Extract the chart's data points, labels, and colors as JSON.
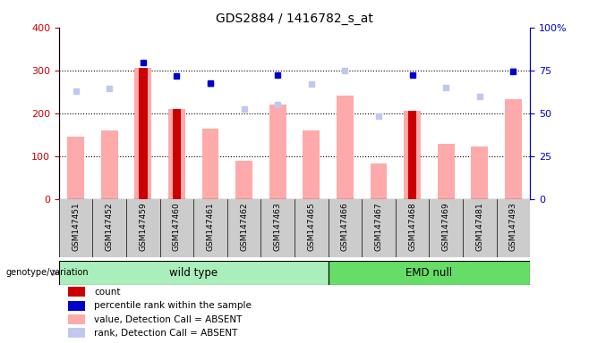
{
  "title": "GDS2884 / 1416782_s_at",
  "samples": [
    "GSM147451",
    "GSM147452",
    "GSM147459",
    "GSM147460",
    "GSM147461",
    "GSM147462",
    "GSM147463",
    "GSM147465",
    "GSM147466",
    "GSM147467",
    "GSM147468",
    "GSM147469",
    "GSM147481",
    "GSM147493"
  ],
  "wt_count": 8,
  "count": [
    null,
    null,
    305,
    210,
    null,
    null,
    null,
    null,
    null,
    null,
    205,
    null,
    null,
    null
  ],
  "value_absent": [
    145,
    160,
    305,
    210,
    165,
    90,
    220,
    160,
    242,
    83,
    205,
    128,
    122,
    232
  ],
  "rank_absent": [
    252,
    258,
    null,
    null,
    268,
    210,
    220,
    268,
    300,
    193,
    null,
    260,
    240,
    300
  ],
  "percentile_absent": [
    null,
    null,
    318,
    286,
    270,
    null,
    288,
    null,
    null,
    null,
    290,
    null,
    null,
    298
  ],
  "ylim_left": [
    0,
    400
  ],
  "ylim_right": [
    0,
    100
  ],
  "yticks_left": [
    0,
    100,
    200,
    300,
    400
  ],
  "yticks_right": [
    0,
    25,
    50,
    75,
    100
  ],
  "group_label": "genotype/variation",
  "group1_label": "wild type",
  "group2_label": "EMD null",
  "group1_color": "#aaeebb",
  "group2_color": "#66dd66",
  "sample_bg": "#cccccc",
  "plot_bg": "#ffffff",
  "color_count": "#cc0000",
  "color_value_absent": "#ffaaaa",
  "color_rank_absent": "#c0c8f0",
  "color_percentile": "#0000cc",
  "color_left_axis": "#cc0000",
  "color_right_axis": "#0000cc"
}
